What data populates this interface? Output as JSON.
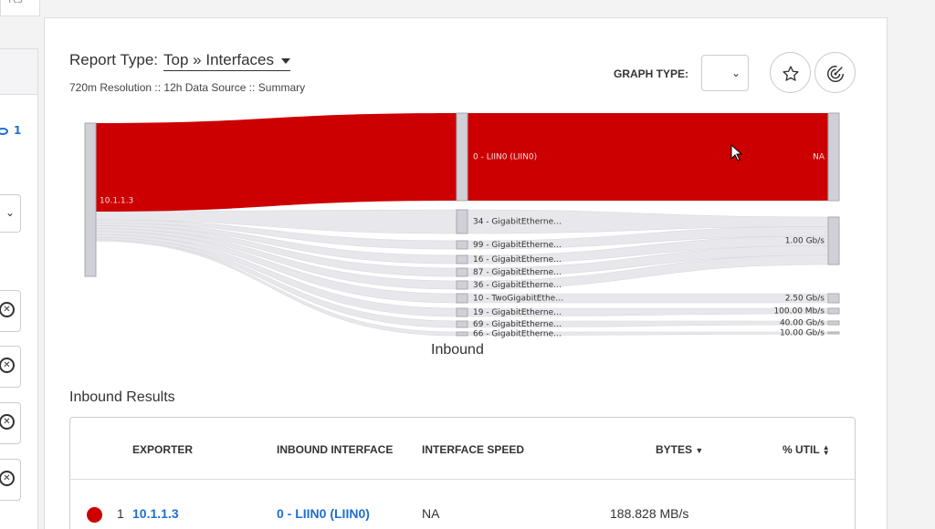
{
  "top_tab": {
    "label": "rts"
  },
  "left_panel": {
    "eye_count": "1"
  },
  "header": {
    "report_type_label": "Report Type:",
    "report_type_value": "Top » Interfaces",
    "sub_info": "720m Resolution :: 12h Data Source :: Summary",
    "graph_type_label": "GRAPH TYPE:",
    "graph_type_value": ""
  },
  "chart_data": {
    "type": "sankey",
    "title": "Inbound",
    "source_node": "10.1.1.3",
    "interfaces": [
      {
        "name": "0 - LIIN0 (LIIN0)",
        "speed": "NA"
      },
      {
        "name": "34 - GigabitEtherne…",
        "speed": "1.00 Gb/s"
      },
      {
        "name": "99 - GigabitEtherne…",
        "speed": "1.00 Gb/s"
      },
      {
        "name": "16 - GigabitEtherne…",
        "speed": "1.00 Gb/s"
      },
      {
        "name": "87 - GigabitEtherne…",
        "speed": "1.00 Gb/s"
      },
      {
        "name": "36 - GigabitEtherne…",
        "speed": "1.00 Gb/s"
      },
      {
        "name": "10 - TwoGigabitEthe…",
        "speed": "2.50 Gb/s"
      },
      {
        "name": "19 - GigabitEtherne…",
        "speed": "100.00 Mb/s"
      },
      {
        "name": "69 - GigabitEtherne…",
        "speed": "40.00 Gb/s"
      },
      {
        "name": "66 - GigabitEtherne…",
        "speed": "10.00 Gb/s"
      }
    ],
    "speed_nodes": [
      "NA",
      "1.00 Gb/s",
      "2.50 Gb/s",
      "100.00 Mb/s",
      "40.00 Gb/s",
      "10.00 Gb/s"
    ],
    "colors": {
      "primary_flow": "#cc0000",
      "minor_flow": "#e8e8ec",
      "node": "#d0d0d8"
    }
  },
  "results": {
    "title": "Inbound Results",
    "columns": [
      "EXPORTER",
      "INBOUND INTERFACE",
      "INTERFACE SPEED",
      "BYTES",
      "% UTIL"
    ],
    "rows": [
      {
        "rank": "1",
        "exporter": "10.1.1.3",
        "interface": "0 - LIIN0 (LIIN0)",
        "speed": "NA",
        "bytes": "188.828 MB/s",
        "util": "",
        "color": "#cc0000"
      }
    ]
  }
}
